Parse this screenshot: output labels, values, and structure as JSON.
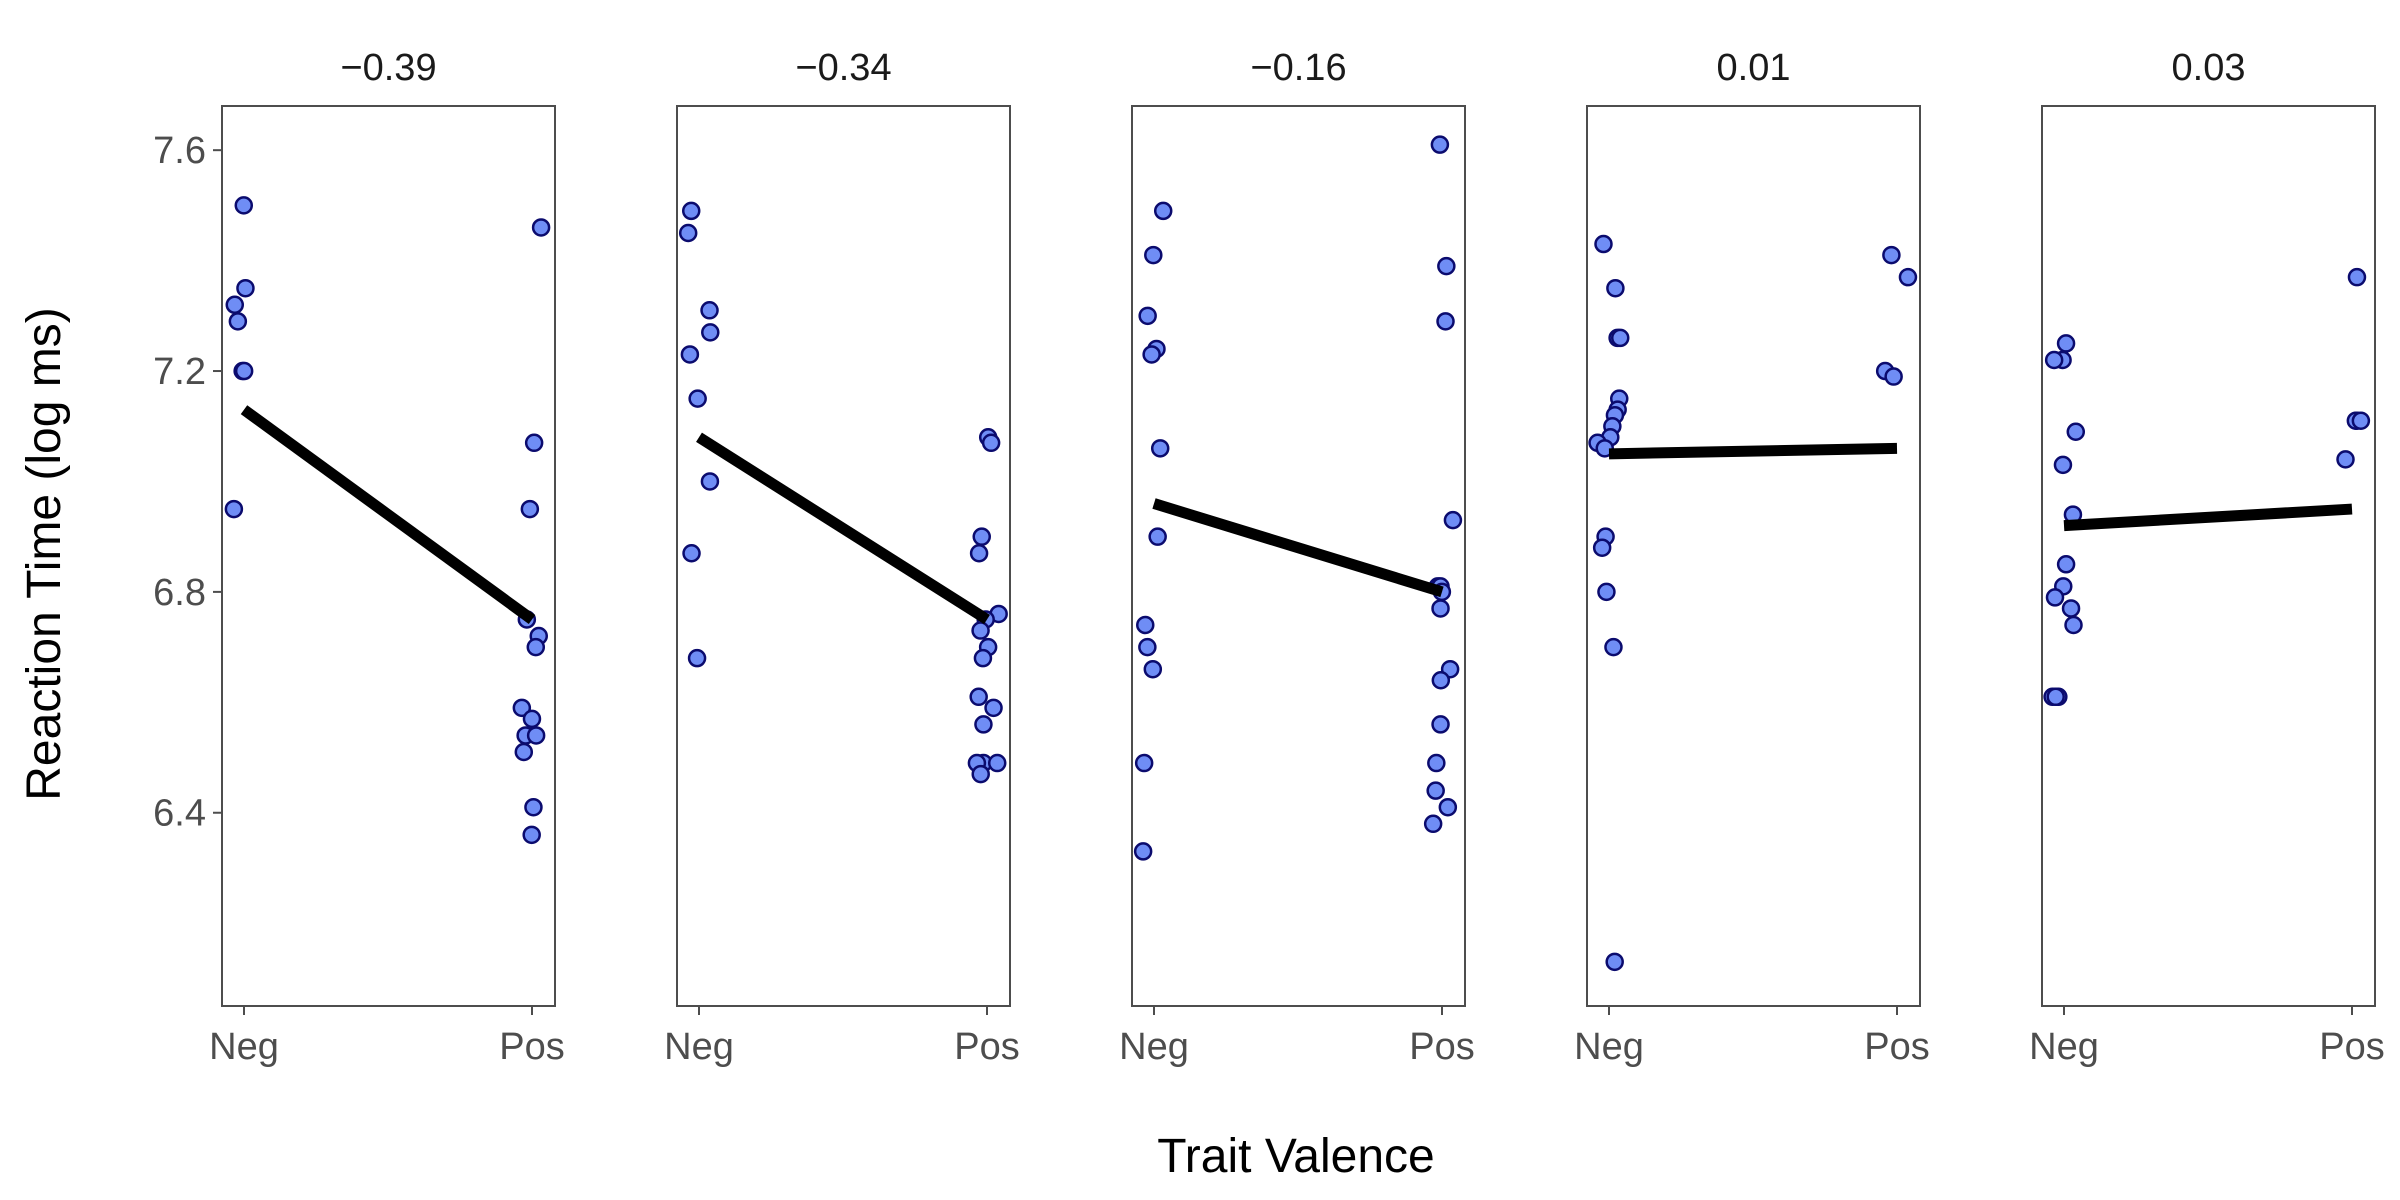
{
  "chart_data": {
    "type": "scatter",
    "xlabel": "Trait Valence",
    "ylabel": "Reaction Time (log ms)",
    "categories": [
      "Neg",
      "Pos"
    ],
    "ylim": [
      6.05,
      7.68
    ],
    "yticks": [
      6.4,
      6.8,
      7.2,
      7.6
    ],
    "grid": false,
    "colors": {
      "point_fill": "#6f8df5",
      "point_stroke": "#0b0b6e",
      "line": "#000000",
      "frame": "#4d4d4d"
    },
    "panels": [
      {
        "label": "−0.39",
        "fit": {
          "neg": 7.13,
          "pos": 6.75
        },
        "points": [
          {
            "x": "Neg",
            "y": 7.5
          },
          {
            "x": "Neg",
            "y": 7.35
          },
          {
            "x": "Neg",
            "y": 7.32
          },
          {
            "x": "Neg",
            "y": 7.29
          },
          {
            "x": "Neg",
            "y": 7.2
          },
          {
            "x": "Neg",
            "y": 7.2
          },
          {
            "x": "Neg",
            "y": 6.95
          },
          {
            "x": "Pos",
            "y": 7.46
          },
          {
            "x": "Pos",
            "y": 7.07
          },
          {
            "x": "Pos",
            "y": 6.95
          },
          {
            "x": "Pos",
            "y": 6.75
          },
          {
            "x": "Pos",
            "y": 6.72
          },
          {
            "x": "Pos",
            "y": 6.7
          },
          {
            "x": "Pos",
            "y": 6.59
          },
          {
            "x": "Pos",
            "y": 6.57
          },
          {
            "x": "Pos",
            "y": 6.54
          },
          {
            "x": "Pos",
            "y": 6.54
          },
          {
            "x": "Pos",
            "y": 6.51
          },
          {
            "x": "Pos",
            "y": 6.41
          },
          {
            "x": "Pos",
            "y": 6.36
          }
        ]
      },
      {
        "label": "−0.34",
        "fit": {
          "neg": 7.08,
          "pos": 6.75
        },
        "points": [
          {
            "x": "Neg",
            "y": 7.49
          },
          {
            "x": "Neg",
            "y": 7.45
          },
          {
            "x": "Neg",
            "y": 7.31
          },
          {
            "x": "Neg",
            "y": 7.27
          },
          {
            "x": "Neg",
            "y": 7.23
          },
          {
            "x": "Neg",
            "y": 7.15
          },
          {
            "x": "Neg",
            "y": 7.0
          },
          {
            "x": "Neg",
            "y": 6.87
          },
          {
            "x": "Neg",
            "y": 6.68
          },
          {
            "x": "Pos",
            "y": 7.08
          },
          {
            "x": "Pos",
            "y": 7.07
          },
          {
            "x": "Pos",
            "y": 6.9
          },
          {
            "x": "Pos",
            "y": 6.87
          },
          {
            "x": "Pos",
            "y": 6.76
          },
          {
            "x": "Pos",
            "y": 6.75
          },
          {
            "x": "Pos",
            "y": 6.73
          },
          {
            "x": "Pos",
            "y": 6.7
          },
          {
            "x": "Pos",
            "y": 6.68
          },
          {
            "x": "Pos",
            "y": 6.61
          },
          {
            "x": "Pos",
            "y": 6.59
          },
          {
            "x": "Pos",
            "y": 6.56
          },
          {
            "x": "Pos",
            "y": 6.49
          },
          {
            "x": "Pos",
            "y": 6.49
          },
          {
            "x": "Pos",
            "y": 6.49
          },
          {
            "x": "Pos",
            "y": 6.47
          }
        ]
      },
      {
        "label": "−0.16",
        "fit": {
          "neg": 6.96,
          "pos": 6.8
        },
        "points": [
          {
            "x": "Neg",
            "y": 7.49
          },
          {
            "x": "Neg",
            "y": 7.41
          },
          {
            "x": "Neg",
            "y": 7.3
          },
          {
            "x": "Neg",
            "y": 7.24
          },
          {
            "x": "Neg",
            "y": 7.23
          },
          {
            "x": "Neg",
            "y": 7.06
          },
          {
            "x": "Neg",
            "y": 6.9
          },
          {
            "x": "Neg",
            "y": 6.74
          },
          {
            "x": "Neg",
            "y": 6.7
          },
          {
            "x": "Neg",
            "y": 6.66
          },
          {
            "x": "Neg",
            "y": 6.49
          },
          {
            "x": "Neg",
            "y": 6.33
          },
          {
            "x": "Pos",
            "y": 7.61
          },
          {
            "x": "Pos",
            "y": 7.39
          },
          {
            "x": "Pos",
            "y": 7.29
          },
          {
            "x": "Pos",
            "y": 6.93
          },
          {
            "x": "Pos",
            "y": 6.81
          },
          {
            "x": "Pos",
            "y": 6.81
          },
          {
            "x": "Pos",
            "y": 6.8
          },
          {
            "x": "Pos",
            "y": 6.77
          },
          {
            "x": "Pos",
            "y": 6.66
          },
          {
            "x": "Pos",
            "y": 6.64
          },
          {
            "x": "Pos",
            "y": 6.56
          },
          {
            "x": "Pos",
            "y": 6.49
          },
          {
            "x": "Pos",
            "y": 6.44
          },
          {
            "x": "Pos",
            "y": 6.41
          },
          {
            "x": "Pos",
            "y": 6.38
          }
        ]
      },
      {
        "label": "0.01",
        "fit": {
          "neg": 7.05,
          "pos": 7.06
        },
        "points": [
          {
            "x": "Neg",
            "y": 7.43
          },
          {
            "x": "Neg",
            "y": 7.35
          },
          {
            "x": "Neg",
            "y": 7.26
          },
          {
            "x": "Neg",
            "y": 7.26
          },
          {
            "x": "Neg",
            "y": 7.15
          },
          {
            "x": "Neg",
            "y": 7.13
          },
          {
            "x": "Neg",
            "y": 7.12
          },
          {
            "x": "Neg",
            "y": 7.1
          },
          {
            "x": "Neg",
            "y": 7.08
          },
          {
            "x": "Neg",
            "y": 7.07
          },
          {
            "x": "Neg",
            "y": 7.06
          },
          {
            "x": "Neg",
            "y": 6.9
          },
          {
            "x": "Neg",
            "y": 6.88
          },
          {
            "x": "Neg",
            "y": 6.8
          },
          {
            "x": "Neg",
            "y": 6.7
          },
          {
            "x": "Neg",
            "y": 6.13
          },
          {
            "x": "Pos",
            "y": 7.41
          },
          {
            "x": "Pos",
            "y": 7.37
          },
          {
            "x": "Pos",
            "y": 7.2
          },
          {
            "x": "Pos",
            "y": 7.19
          }
        ]
      },
      {
        "label": "0.03",
        "fit": {
          "neg": 6.92,
          "pos": 6.95
        },
        "points": [
          {
            "x": "Neg",
            "y": 7.25
          },
          {
            "x": "Neg",
            "y": 7.22
          },
          {
            "x": "Neg",
            "y": 7.22
          },
          {
            "x": "Neg",
            "y": 7.09
          },
          {
            "x": "Neg",
            "y": 7.03
          },
          {
            "x": "Neg",
            "y": 6.94
          },
          {
            "x": "Neg",
            "y": 6.85
          },
          {
            "x": "Neg",
            "y": 6.81
          },
          {
            "x": "Neg",
            "y": 6.79
          },
          {
            "x": "Neg",
            "y": 6.77
          },
          {
            "x": "Neg",
            "y": 6.74
          },
          {
            "x": "Neg",
            "y": 6.61
          },
          {
            "x": "Neg",
            "y": 6.61
          },
          {
            "x": "Neg",
            "y": 6.61
          },
          {
            "x": "Pos",
            "y": 7.37
          },
          {
            "x": "Pos",
            "y": 7.11
          },
          {
            "x": "Pos",
            "y": 7.11
          },
          {
            "x": "Pos",
            "y": 7.11
          },
          {
            "x": "Pos",
            "y": 7.04
          }
        ]
      }
    ]
  }
}
